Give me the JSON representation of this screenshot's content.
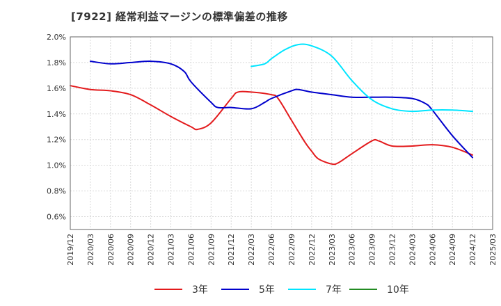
{
  "chart_data": {
    "type": "line",
    "title": "[7922]  経常利益マージンの標準偏差の推移",
    "xlabel": "",
    "ylabel": "",
    "ylim": [
      0.5,
      2.0
    ],
    "yticks": [
      "0.6%",
      "0.8%",
      "1.0%",
      "1.2%",
      "1.4%",
      "1.6%",
      "1.8%",
      "2.0%"
    ],
    "ytick_values": [
      0.6,
      0.8,
      1.0,
      1.2,
      1.4,
      1.6,
      1.8,
      2.0
    ],
    "xticks": [
      "2019/12",
      "2020/03",
      "2020/06",
      "2020/09",
      "2020/12",
      "2021/03",
      "2021/06",
      "2021/09",
      "2021/12",
      "2022/03",
      "2022/06",
      "2022/09",
      "2022/12",
      "2023/03",
      "2023/06",
      "2023/09",
      "2023/12",
      "2024/03",
      "2024/06",
      "2024/09",
      "2024/12",
      "2025/03"
    ],
    "grid": true,
    "legend_position": "bottom",
    "series": [
      {
        "name": "3年",
        "color": "#e31a1c",
        "x": [
          "2019/12",
          "2020/03",
          "2020/06",
          "2020/09",
          "2020/12",
          "2021/03",
          "2021/06",
          "2021/07",
          "2021/09",
          "2021/12",
          "2022/01",
          "2022/03",
          "2022/06",
          "2022/07",
          "2022/09",
          "2022/11",
          "2022/12",
          "2023/01",
          "2023/03",
          "2023/04",
          "2023/06",
          "2023/09",
          "2023/10",
          "2023/12",
          "2024/03",
          "2024/06",
          "2024/09",
          "2024/12"
        ],
        "values": [
          1.62,
          1.59,
          1.58,
          1.55,
          1.47,
          1.38,
          1.3,
          1.28,
          1.33,
          1.52,
          1.57,
          1.57,
          1.55,
          1.52,
          1.35,
          1.18,
          1.11,
          1.05,
          1.01,
          1.02,
          1.09,
          1.19,
          1.19,
          1.15,
          1.15,
          1.16,
          1.14,
          1.08
        ]
      },
      {
        "name": "5年",
        "color": "#0000cc",
        "x": [
          "2020/03",
          "2020/06",
          "2020/09",
          "2020/12",
          "2021/03",
          "2021/05",
          "2021/06",
          "2021/09",
          "2021/10",
          "2021/12",
          "2022/03",
          "2022/05",
          "2022/06",
          "2022/09",
          "2022/10",
          "2022/12",
          "2023/03",
          "2023/06",
          "2023/09",
          "2023/12",
          "2024/03",
          "2024/05",
          "2024/06",
          "2024/09",
          "2024/12"
        ],
        "values": [
          1.81,
          1.79,
          1.8,
          1.81,
          1.79,
          1.73,
          1.65,
          1.49,
          1.45,
          1.45,
          1.44,
          1.49,
          1.52,
          1.58,
          1.59,
          1.57,
          1.55,
          1.53,
          1.53,
          1.53,
          1.52,
          1.48,
          1.43,
          1.23,
          1.06
        ]
      },
      {
        "name": "7年",
        "color": "#00e5ff",
        "x": [
          "2022/03",
          "2022/05",
          "2022/06",
          "2022/08",
          "2022/10",
          "2022/12",
          "2023/03",
          "2023/06",
          "2023/09",
          "2023/12",
          "2024/03",
          "2024/06",
          "2024/09",
          "2024/12"
        ],
        "values": [
          1.77,
          1.79,
          1.83,
          1.9,
          1.94,
          1.93,
          1.85,
          1.66,
          1.51,
          1.44,
          1.42,
          1.43,
          1.43,
          1.42
        ]
      },
      {
        "name": "10年",
        "color": "#228b22",
        "x": [],
        "values": []
      }
    ]
  }
}
